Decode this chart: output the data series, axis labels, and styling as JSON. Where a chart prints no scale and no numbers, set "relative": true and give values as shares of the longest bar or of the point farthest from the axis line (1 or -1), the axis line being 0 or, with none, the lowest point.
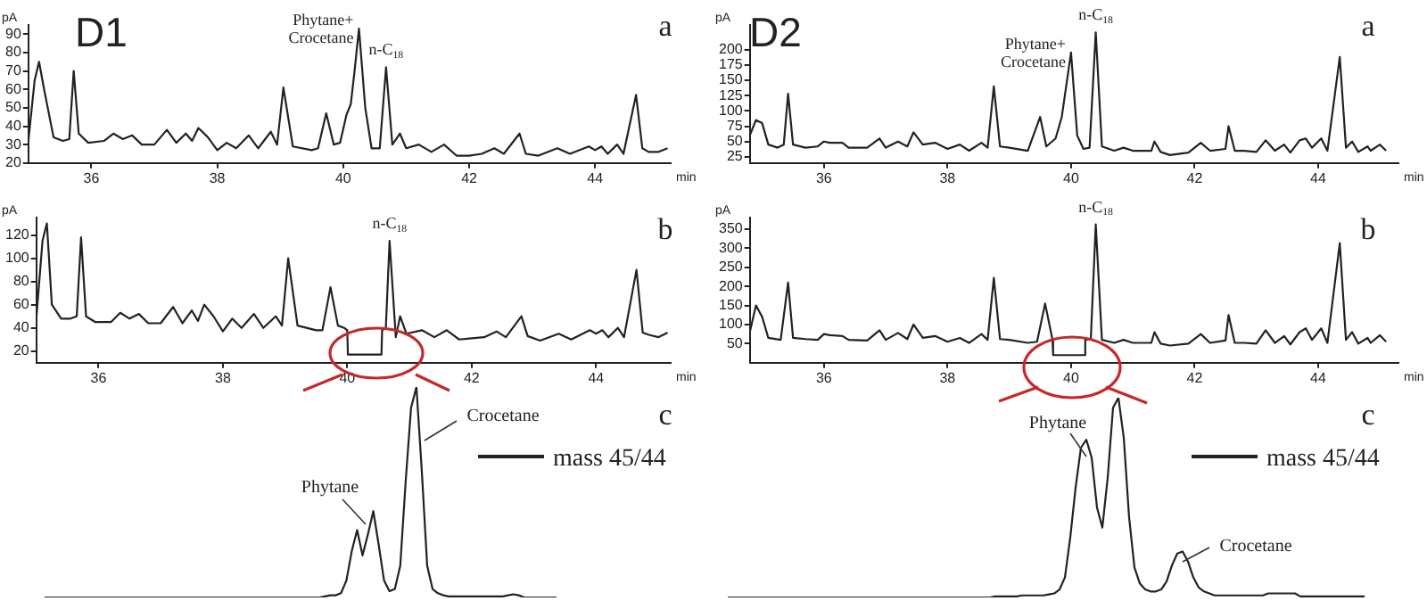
{
  "chart_data": [
    {
      "type": "line",
      "title": "D1",
      "xlabel": "min",
      "ylabel": "pA",
      "xlim": [
        35,
        45.2
      ],
      "xticks": [
        36,
        38,
        40,
        42,
        44
      ],
      "ylim": [
        20,
        95
      ],
      "yticks": [
        20,
        30,
        40,
        50,
        60,
        70,
        80,
        90
      ],
      "color": "#222222",
      "x": [
        35.0,
        35.1,
        35.17,
        35.25,
        35.4,
        35.55,
        35.65,
        35.72,
        35.8,
        35.95,
        36.2,
        36.35,
        36.5,
        36.65,
        36.8,
        37.0,
        37.2,
        37.35,
        37.5,
        37.6,
        37.7,
        37.85,
        38.0,
        38.15,
        38.3,
        38.5,
        38.65,
        38.85,
        38.95,
        39.05,
        39.2,
        39.5,
        39.6,
        39.73,
        39.85,
        39.95,
        40.05,
        40.12,
        40.18,
        40.25,
        40.35,
        40.45,
        40.58,
        40.68,
        40.78,
        40.9,
        41.0,
        41.2,
        41.4,
        41.6,
        41.8,
        42.0,
        42.2,
        42.4,
        42.55,
        42.8,
        42.9,
        43.1,
        43.4,
        43.6,
        43.9,
        44.0,
        44.1,
        44.2,
        44.35,
        44.45,
        44.65,
        44.75,
        44.85,
        45.0,
        45.15
      ],
      "values": [
        32,
        65,
        75,
        60,
        34,
        32,
        33,
        70,
        36,
        31,
        32,
        36,
        33,
        35,
        30,
        30,
        38,
        31,
        36,
        32,
        39,
        34,
        27,
        31,
        28,
        35,
        28,
        37,
        30,
        61,
        29,
        27,
        28,
        47,
        30,
        31,
        46,
        52,
        70,
        93,
        50,
        28,
        28,
        72,
        30,
        36,
        28,
        30,
        26,
        30,
        24,
        24,
        25,
        28,
        25,
        36,
        25,
        24,
        28,
        25,
        29,
        27,
        29,
        25,
        30,
        25,
        57,
        28,
        26,
        26,
        28
      ],
      "annotations": [
        "a",
        {
          "text": "Phytane+\nCrocetane",
          "x": 40.25,
          "y": 93
        },
        {
          "text": "n-C$_{18}$",
          "x": 40.68,
          "y": 72
        }
      ]
    },
    {
      "type": "line",
      "xlabel": "min",
      "ylabel": "pA",
      "xlim": [
        35,
        45.2
      ],
      "xticks": [
        36,
        38,
        40,
        42,
        44
      ],
      "ylim": [
        10,
        135
      ],
      "yticks": [
        20,
        40,
        60,
        80,
        100,
        120
      ],
      "color": "#222222",
      "x": [
        35.0,
        35.1,
        35.17,
        35.25,
        35.4,
        35.55,
        35.65,
        35.72,
        35.8,
        35.95,
        36.2,
        36.35,
        36.5,
        36.65,
        36.8,
        37.0,
        37.2,
        37.35,
        37.5,
        37.6,
        37.7,
        37.85,
        38.0,
        38.15,
        38.3,
        38.5,
        38.65,
        38.85,
        38.95,
        39.05,
        39.2,
        39.5,
        39.6,
        39.73,
        39.85,
        39.95,
        40.0,
        40.01,
        40.55,
        40.56,
        40.62,
        40.68,
        40.78,
        40.85,
        40.95,
        41.2,
        41.4,
        41.6,
        41.8,
        42.0,
        42.2,
        42.4,
        42.55,
        42.8,
        42.9,
        43.1,
        43.4,
        43.6,
        43.9,
        44.0,
        44.1,
        44.2,
        44.35,
        44.45,
        44.65,
        44.75,
        44.85,
        45.0,
        45.15
      ],
      "values": [
        48,
        115,
        130,
        60,
        48,
        48,
        50,
        118,
        50,
        45,
        45,
        53,
        48,
        52,
        44,
        44,
        58,
        44,
        55,
        46,
        60,
        50,
        37,
        48,
        40,
        52,
        40,
        50,
        42,
        100,
        42,
        38,
        38,
        75,
        42,
        40,
        38,
        17,
        17,
        38,
        40,
        115,
        32,
        50,
        35,
        38,
        32,
        38,
        30,
        31,
        32,
        37,
        32,
        50,
        33,
        29,
        35,
        30,
        38,
        35,
        38,
        32,
        40,
        32,
        90,
        36,
        34,
        32,
        36
      ],
      "annotations": [
        "b",
        {
          "text": "n-C$_{18}$",
          "x": 40.68,
          "y": 115
        }
      ]
    },
    {
      "type": "line",
      "relative": true,
      "legend": "top right",
      "categories": [
        null,
        null,
        null,
        null,
        null,
        null,
        null,
        null,
        null,
        null,
        null,
        null,
        null,
        null,
        null,
        null,
        null,
        null,
        null,
        null,
        null,
        null,
        null,
        null,
        null,
        null,
        null,
        null,
        null,
        null,
        null,
        null,
        null,
        null,
        null,
        null,
        null,
        null,
        null,
        null,
        null,
        null,
        null,
        null,
        null,
        null,
        null,
        null,
        null,
        null,
        null,
        null,
        null,
        null,
        null,
        null,
        null,
        null,
        null,
        null,
        null,
        null,
        null,
        null,
        null,
        null,
        null,
        null,
        null,
        null,
        null,
        null,
        null,
        null,
        null,
        null,
        null,
        null,
        null,
        null,
        null,
        null,
        null,
        null,
        null,
        null,
        null,
        null,
        null,
        null,
        null,
        null,
        null,
        null,
        null,
        null
      ],
      "series": [
        {
          "name": "mass 45/44",
          "color": "#222222",
          "values": [
            0,
            0,
            0,
            0,
            0,
            0,
            0,
            0,
            0,
            0,
            0,
            0,
            0,
            0,
            0,
            0,
            0,
            0,
            0,
            0,
            0,
            0,
            0,
            0,
            0,
            0,
            0,
            0,
            0,
            0,
            0,
            0,
            0,
            0,
            0,
            0,
            0,
            0,
            0,
            0,
            0,
            0,
            0,
            0,
            0,
            0,
            0,
            0,
            0,
            0,
            0,
            0,
            0.005,
            0.01,
            0.01,
            0.02,
            0.08,
            0.22,
            0.32,
            0.2,
            0.3,
            0.41,
            0.25,
            0.08,
            0.03,
            0.04,
            0.15,
            0.55,
            0.9,
            1.0,
            0.6,
            0.15,
            0.04,
            0.02,
            0.01,
            0.005,
            0.005,
            0.005,
            0.005,
            0.005,
            0.005,
            0.005,
            0.005,
            0.005,
            0.005,
            0.005,
            0.01,
            0.015,
            0.01,
            0,
            0,
            0,
            0,
            0,
            0,
            0
          ]
        }
      ],
      "annotations": [
        "c",
        "Phytane",
        "Crocetane"
      ]
    },
    {
      "type": "line",
      "title": "D2",
      "xlabel": "min",
      "ylabel": "pA",
      "xlim": [
        34.8,
        45.3
      ],
      "xticks": [
        36,
        38,
        40,
        42,
        44
      ],
      "ylim": [
        15,
        240
      ],
      "yticks": [
        25,
        50,
        75,
        100,
        125,
        150,
        175,
        200
      ],
      "color": "#222222",
      "x": [
        34.8,
        34.9,
        35.0,
        35.1,
        35.25,
        35.35,
        35.42,
        35.5,
        35.7,
        35.9,
        36.0,
        36.1,
        36.3,
        36.4,
        36.7,
        36.9,
        37.0,
        37.2,
        37.35,
        37.45,
        37.6,
        37.8,
        38.0,
        38.2,
        38.35,
        38.55,
        38.65,
        38.75,
        38.85,
        39.0,
        39.3,
        39.5,
        39.6,
        39.75,
        39.85,
        40.0,
        40.1,
        40.2,
        40.3,
        40.4,
        40.5,
        40.7,
        40.85,
        41.0,
        41.3,
        41.35,
        41.45,
        41.6,
        41.9,
        42.1,
        42.25,
        42.5,
        42.55,
        42.65,
        42.8,
        43.0,
        43.15,
        43.3,
        43.45,
        43.55,
        43.7,
        43.8,
        43.9,
        44.05,
        44.15,
        44.35,
        44.45,
        44.55,
        44.65,
        44.8,
        44.85,
        45.0,
        45.1
      ],
      "values": [
        60,
        85,
        80,
        45,
        40,
        45,
        128,
        45,
        40,
        42,
        50,
        48,
        48,
        40,
        40,
        55,
        40,
        50,
        42,
        65,
        45,
        48,
        38,
        45,
        35,
        48,
        40,
        140,
        42,
        40,
        35,
        90,
        42,
        55,
        90,
        195,
        60,
        38,
        40,
        228,
        42,
        35,
        40,
        35,
        35,
        50,
        33,
        28,
        32,
        48,
        35,
        38,
        75,
        35,
        35,
        33,
        52,
        35,
        45,
        32,
        52,
        55,
        40,
        55,
        35,
        188,
        40,
        50,
        33,
        42,
        35,
        45,
        35
      ],
      "annotations": [
        "a",
        {
          "text": "Phytane+\nCrocetane",
          "x": 40.0,
          "y": 195
        },
        {
          "text": "n-C$_{18}$",
          "x": 40.4,
          "y": 228
        }
      ]
    },
    {
      "type": "line",
      "xlabel": "min",
      "ylabel": "pA",
      "xlim": [
        34.8,
        45.3
      ],
      "xticks": [
        36,
        38,
        40,
        42,
        44
      ],
      "ylim": [
        0,
        380
      ],
      "yticks": [
        50,
        100,
        150,
        200,
        250,
        300,
        350
      ],
      "color": "#222222",
      "x": [
        34.8,
        34.9,
        35.0,
        35.1,
        35.3,
        35.42,
        35.5,
        35.7,
        35.9,
        36.0,
        36.1,
        36.3,
        36.4,
        36.7,
        36.9,
        37.0,
        37.2,
        37.35,
        37.45,
        37.6,
        37.8,
        38.0,
        38.2,
        38.35,
        38.55,
        38.65,
        38.75,
        38.85,
        39.0,
        39.3,
        39.45,
        39.58,
        39.7,
        39.71,
        40.22,
        40.23,
        40.32,
        40.4,
        40.5,
        40.7,
        40.85,
        41.0,
        41.3,
        41.35,
        41.45,
        41.6,
        41.9,
        42.1,
        42.25,
        42.5,
        42.55,
        42.65,
        42.8,
        43.0,
        43.15,
        43.3,
        43.45,
        43.55,
        43.7,
        43.8,
        43.9,
        44.05,
        44.15,
        44.35,
        44.45,
        44.55,
        44.65,
        44.8,
        44.85,
        45.0,
        45.1
      ],
      "values": [
        80,
        150,
        120,
        65,
        60,
        210,
        65,
        62,
        60,
        75,
        72,
        70,
        60,
        58,
        85,
        60,
        78,
        62,
        100,
        65,
        70,
        55,
        65,
        52,
        75,
        60,
        222,
        62,
        60,
        52,
        55,
        155,
        60,
        20,
        20,
        60,
        62,
        362,
        60,
        52,
        60,
        52,
        52,
        80,
        50,
        45,
        50,
        75,
        52,
        58,
        125,
        52,
        52,
        50,
        85,
        52,
        70,
        48,
        80,
        90,
        60,
        90,
        52,
        313,
        60,
        80,
        50,
        65,
        52,
        72,
        55
      ],
      "annotations": [
        "b",
        {
          "text": "n-C$_{18}$",
          "x": 40.4,
          "y": 362
        }
      ]
    },
    {
      "type": "line",
      "relative": true,
      "legend": "top right",
      "categories": [
        null,
        null,
        null,
        null,
        null,
        null,
        null,
        null,
        null,
        null,
        null,
        null,
        null,
        null,
        null,
        null,
        null,
        null,
        null,
        null,
        null,
        null,
        null,
        null,
        null,
        null,
        null,
        null,
        null,
        null,
        null,
        null,
        null,
        null,
        null,
        null,
        null,
        null,
        null,
        null,
        null,
        null,
        null,
        null,
        null,
        null,
        null,
        null,
        null,
        null,
        null,
        null,
        null,
        null,
        null,
        null,
        null,
        null,
        null,
        null,
        null,
        null,
        null,
        null,
        null,
        null,
        null,
        null,
        null,
        null,
        null,
        null,
        null,
        null,
        null,
        null,
        null,
        null,
        null,
        null,
        null,
        null,
        null,
        null,
        null,
        null,
        null,
        null,
        null,
        null,
        null,
        null,
        null,
        null,
        null,
        null,
        null,
        null,
        null,
        null,
        null,
        null,
        null,
        null,
        null,
        null,
        null,
        null,
        null,
        null,
        null,
        null,
        null,
        null,
        null,
        null,
        null,
        null,
        null,
        null
      ],
      "series": [
        {
          "name": "mass 45/44",
          "color": "#222222",
          "values": [
            0,
            0,
            0,
            0,
            0,
            0,
            0,
            0,
            0,
            0,
            0,
            0,
            0,
            0,
            0,
            0,
            0,
            0,
            0,
            0,
            0,
            0,
            0,
            0,
            0,
            0,
            0,
            0,
            0,
            0,
            0,
            0,
            0,
            0,
            0,
            0,
            0,
            0,
            0,
            0,
            0,
            0,
            0,
            0,
            0,
            0,
            0,
            0,
            0,
            0,
            0.005,
            0.005,
            0.005,
            0.005,
            0.005,
            0.01,
            0.01,
            0.01,
            0.01,
            0.01,
            0.015,
            0.02,
            0.04,
            0.1,
            0.3,
            0.55,
            0.75,
            0.79,
            0.7,
            0.45,
            0.35,
            0.6,
            0.95,
            1.0,
            0.8,
            0.4,
            0.15,
            0.07,
            0.04,
            0.03,
            0.03,
            0.04,
            0.08,
            0.16,
            0.22,
            0.23,
            0.18,
            0.1,
            0.05,
            0.03,
            0.02,
            0.01,
            0.01,
            0.01,
            0.01,
            0.01,
            0.01,
            0.01,
            0.01,
            0.01,
            0.01,
            0.02,
            0.02,
            0.02,
            0.02,
            0.02,
            0.02,
            0.005,
            0.005,
            0.005,
            0.005,
            0.005,
            0.005,
            0.005,
            0.005,
            0.005,
            0.005,
            0.005,
            0.005,
            0.005
          ]
        }
      ],
      "annotations": [
        "c",
        "Phytane",
        "Crocetane"
      ]
    }
  ]
}
